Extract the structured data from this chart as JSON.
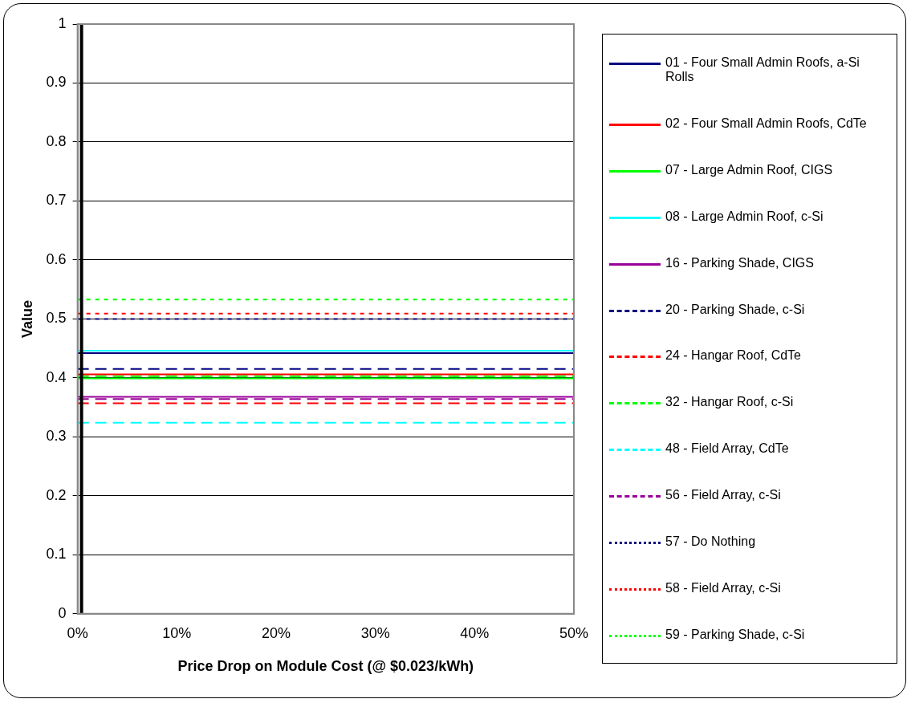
{
  "chart_data": {
    "type": "line",
    "xlabel": "Price Drop on Module Cost (@ $0.023/kWh)",
    "ylabel": "Value",
    "x": [
      0,
      50
    ],
    "xlim": [
      0,
      50
    ],
    "xticks": [
      {
        "value": 0,
        "label": "0%"
      },
      {
        "value": 10,
        "label": "10%"
      },
      {
        "value": 20,
        "label": "20%"
      },
      {
        "value": 30,
        "label": "30%"
      },
      {
        "value": 40,
        "label": "40%"
      },
      {
        "value": 50,
        "label": "50%"
      }
    ],
    "ylim": [
      0,
      1
    ],
    "yticks": [
      0,
      0.1,
      0.2,
      0.3,
      0.4,
      0.5,
      0.6,
      0.7,
      0.8,
      0.9,
      1
    ],
    "grid": "y",
    "legend": "right",
    "marker": "none",
    "ref_lines": [
      {
        "axis": "x",
        "value": 0.4,
        "color": "#000000"
      }
    ],
    "series": [
      {
        "name": "01 - Four Small Admin Roofs, a-Si Rolls",
        "color": "#000080",
        "line_style": "solid",
        "values": [
          0.442,
          0.442
        ]
      },
      {
        "name": "02 - Four Small Admin Roofs, CdTe",
        "color": "#ff0000",
        "line_style": "solid",
        "values": [
          0.406,
          0.406
        ]
      },
      {
        "name": "07 - Large Admin Roof, CIGS",
        "color": "#00ff00",
        "line_style": "solid",
        "values": [
          0.399,
          0.399
        ]
      },
      {
        "name": "08 - Large Admin Roof, c-Si",
        "color": "#00ffff",
        "line_style": "solid",
        "values": [
          0.446,
          0.446
        ]
      },
      {
        "name": "16 - Parking Shade, CIGS",
        "color": "#990099",
        "line_style": "solid",
        "values": [
          0.368,
          0.368
        ]
      },
      {
        "name": "20 - Parking Shade, c-Si",
        "color": "#000080",
        "line_style": "dashed",
        "values": [
          0.415,
          0.415
        ]
      },
      {
        "name": "24 - Hangar Roof, CdTe",
        "color": "#ff0000",
        "line_style": "dashed",
        "values": [
          0.357,
          0.357
        ]
      },
      {
        "name": "32 - Hangar Roof, c-Si",
        "color": "#00ff00",
        "line_style": "dashed",
        "values": [
          0.403,
          0.403
        ]
      },
      {
        "name": "48 - Field Array, CdTe",
        "color": "#00ffff",
        "line_style": "dashed",
        "values": [
          0.324,
          0.324
        ]
      },
      {
        "name": "56 - Field Array, c-Si",
        "color": "#990099",
        "line_style": "dashed",
        "values": [
          0.364,
          0.364
        ]
      },
      {
        "name": "57 - Do Nothing",
        "color": "#000080",
        "line_style": "dotted",
        "values": [
          0.5,
          0.5
        ]
      },
      {
        "name": "58 - Field Array, c-Si",
        "color": "#ff0000",
        "line_style": "dotted",
        "values": [
          0.509,
          0.509
        ]
      },
      {
        "name": "59 - Parking Shade, c-Si",
        "color": "#00ff00",
        "line_style": "dotted",
        "values": [
          0.533,
          0.533
        ]
      }
    ]
  }
}
